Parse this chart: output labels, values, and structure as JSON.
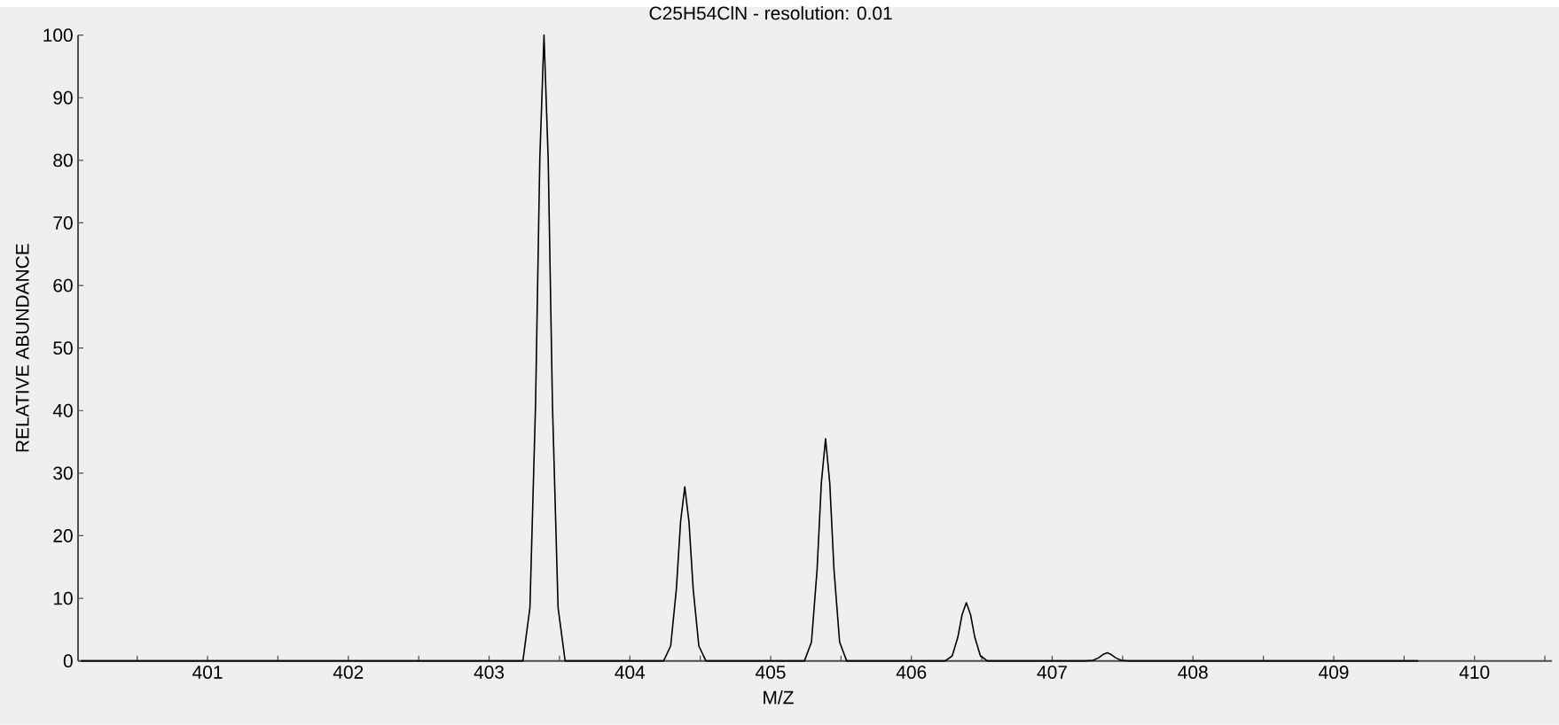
{
  "chart_data": {
    "type": "line",
    "title": "C25H54ClN - resolution: 0.01",
    "xlabel": "M/Z",
    "ylabel": "RELATIVE ABUNDANCE",
    "x": [
      400.1,
      403.24,
      403.29,
      403.33,
      403.36,
      403.39,
      403.42,
      403.45,
      403.49,
      403.54,
      404.24,
      404.29,
      404.33,
      404.36,
      404.39,
      404.42,
      404.45,
      404.49,
      404.54,
      405.24,
      405.29,
      405.33,
      405.36,
      405.39,
      405.42,
      405.45,
      405.49,
      405.54,
      406.24,
      406.29,
      406.33,
      406.36,
      406.39,
      406.42,
      406.45,
      406.49,
      406.54,
      407.24,
      407.29,
      407.33,
      407.36,
      407.39,
      407.42,
      407.45,
      407.49,
      407.54,
      409.6
    ],
    "values": [
      0,
      0,
      8.5,
      41,
      80,
      100,
      80,
      41,
      8.5,
      0,
      0,
      2.4,
      11.4,
      22.2,
      27.8,
      22.2,
      11.4,
      2.4,
      0,
      0,
      3,
      14.6,
      28.4,
      35.5,
      28.4,
      14.6,
      3,
      0,
      0,
      0.8,
      3.8,
      7.4,
      9.3,
      7.4,
      3.8,
      0.8,
      0,
      0,
      0.1,
      0.5,
      1,
      1.3,
      1,
      0.5,
      0.1,
      0,
      0
    ],
    "color": "#000000",
    "marker": "none",
    "line_style": "solid",
    "xlim": [
      400.08,
      410.55
    ],
    "ylim": [
      0,
      100
    ],
    "xticks": [
      {
        "value": 400.5,
        "label": null
      },
      401,
      {
        "value": 401.5,
        "label": null
      },
      402,
      {
        "value": 402.5,
        "label": null
      },
      403,
      {
        "value": 403.5,
        "label": null
      },
      404,
      {
        "value": 404.5,
        "label": null
      },
      405,
      {
        "value": 405.5,
        "label": null
      },
      406,
      {
        "value": 406.5,
        "label": null
      },
      407,
      {
        "value": 407.5,
        "label": null
      },
      408,
      {
        "value": 408.5,
        "label": null
      },
      409,
      {
        "value": 409.5,
        "label": null
      },
      410,
      {
        "value": 410.5,
        "label": null
      }
    ],
    "yticks": [
      0,
      10,
      20,
      30,
      40,
      50,
      60,
      70,
      80,
      90,
      100
    ]
  }
}
